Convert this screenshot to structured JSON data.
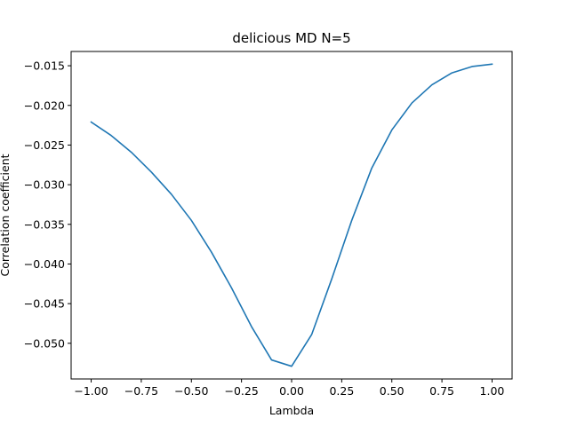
{
  "chart_data": {
    "type": "line",
    "title": "delicious MD N=5",
    "xlabel": "Lambda",
    "ylabel": "Correlation coefficient",
    "xlim": [
      -1.1,
      1.1
    ],
    "ylim": [
      -0.0545,
      -0.0132
    ],
    "xticks": [
      -1.0,
      -0.75,
      -0.5,
      -0.25,
      0.0,
      0.25,
      0.5,
      0.75,
      1.0
    ],
    "xtick_labels": [
      "−1.00",
      "−0.75",
      "−0.50",
      "−0.25",
      "0.00",
      "0.25",
      "0.50",
      "0.75",
      "1.00"
    ],
    "yticks": [
      -0.05,
      -0.045,
      -0.04,
      -0.035,
      -0.03,
      -0.025,
      -0.02,
      -0.015
    ],
    "ytick_labels": [
      "−0.050",
      "−0.045",
      "−0.040",
      "−0.035",
      "−0.030",
      "−0.025",
      "−0.020",
      "−0.015"
    ],
    "grid": false,
    "series": [
      {
        "color": "#1f77b4",
        "x": [
          -1.0,
          -0.9,
          -0.8,
          -0.7,
          -0.6,
          -0.5,
          -0.4,
          -0.3,
          -0.2,
          -0.1,
          0.0,
          0.1,
          0.2,
          0.3,
          0.4,
          0.5,
          0.6,
          0.7,
          0.8,
          0.9,
          1.0
        ],
        "y": [
          -0.0221,
          -0.0238,
          -0.0259,
          -0.0284,
          -0.0312,
          -0.0345,
          -0.0385,
          -0.043,
          -0.0479,
          -0.0521,
          -0.0529,
          -0.0489,
          -0.0419,
          -0.0345,
          -0.0279,
          -0.0231,
          -0.0197,
          -0.0174,
          -0.0159,
          -0.0151,
          -0.0148
        ]
      }
    ]
  }
}
